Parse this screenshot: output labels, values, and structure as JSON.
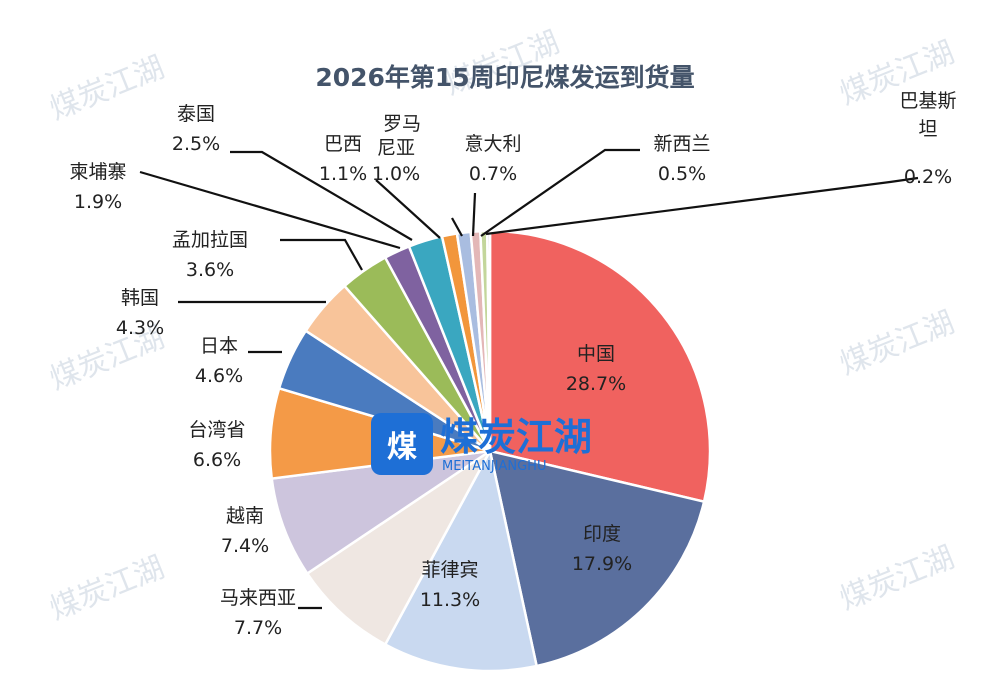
{
  "chart_data": {
    "type": "pie",
    "title": "2026年第15周印尼煤发运到货量",
    "slices": [
      {
        "name": "中国",
        "label": "28.7%",
        "value": 28.7,
        "color": "#f0625f"
      },
      {
        "name": "印度",
        "label": "17.9%",
        "value": 17.9,
        "color": "#5a6f9e"
      },
      {
        "name": "菲律宾",
        "label": "11.3%",
        "value": 11.3,
        "color": "#c9d9f0"
      },
      {
        "name": "马来西亚",
        "label": "7.7%",
        "value": 7.7,
        "color": "#efe7e2"
      },
      {
        "name": "越南",
        "label": "7.4%",
        "value": 7.4,
        "color": "#cdc5dd"
      },
      {
        "name": "台湾省",
        "label": "6.6%",
        "value": 6.6,
        "color": "#f49a47"
      },
      {
        "name": "日本",
        "label": "4.6%",
        "value": 4.6,
        "color": "#4a7bbf"
      },
      {
        "name": "韩国",
        "label": "4.3%",
        "value": 4.3,
        "color": "#f8c49a"
      },
      {
        "name": "孟加拉国",
        "label": "3.6%",
        "value": 3.6,
        "color": "#9bbb59"
      },
      {
        "name": "柬埔寨",
        "label": "1.9%",
        "value": 1.9,
        "color": "#7f62a0"
      },
      {
        "name": "泰国",
        "label": "2.5%",
        "value": 2.5,
        "color": "#3aa7c0"
      },
      {
        "name": "巴西",
        "label": "1.1%",
        "value": 1.1,
        "color": "#f2963b"
      },
      {
        "name": "罗马尼亚",
        "label": "1.0%",
        "value": 1.0,
        "color": "#a9bde0"
      },
      {
        "name": "意大利",
        "label": "0.7%",
        "value": 0.7,
        "color": "#e3b7b7"
      },
      {
        "name": "新西兰",
        "label": "0.5%",
        "value": 0.5,
        "color": "#c3d69b"
      },
      {
        "name": "巴基斯坦",
        "label": "0.2%",
        "value": 0.2,
        "color": "#b3a2c7"
      }
    ]
  },
  "watermark": {
    "brand": "煤炭江湖",
    "sub": "MEITANJIANGHU"
  }
}
